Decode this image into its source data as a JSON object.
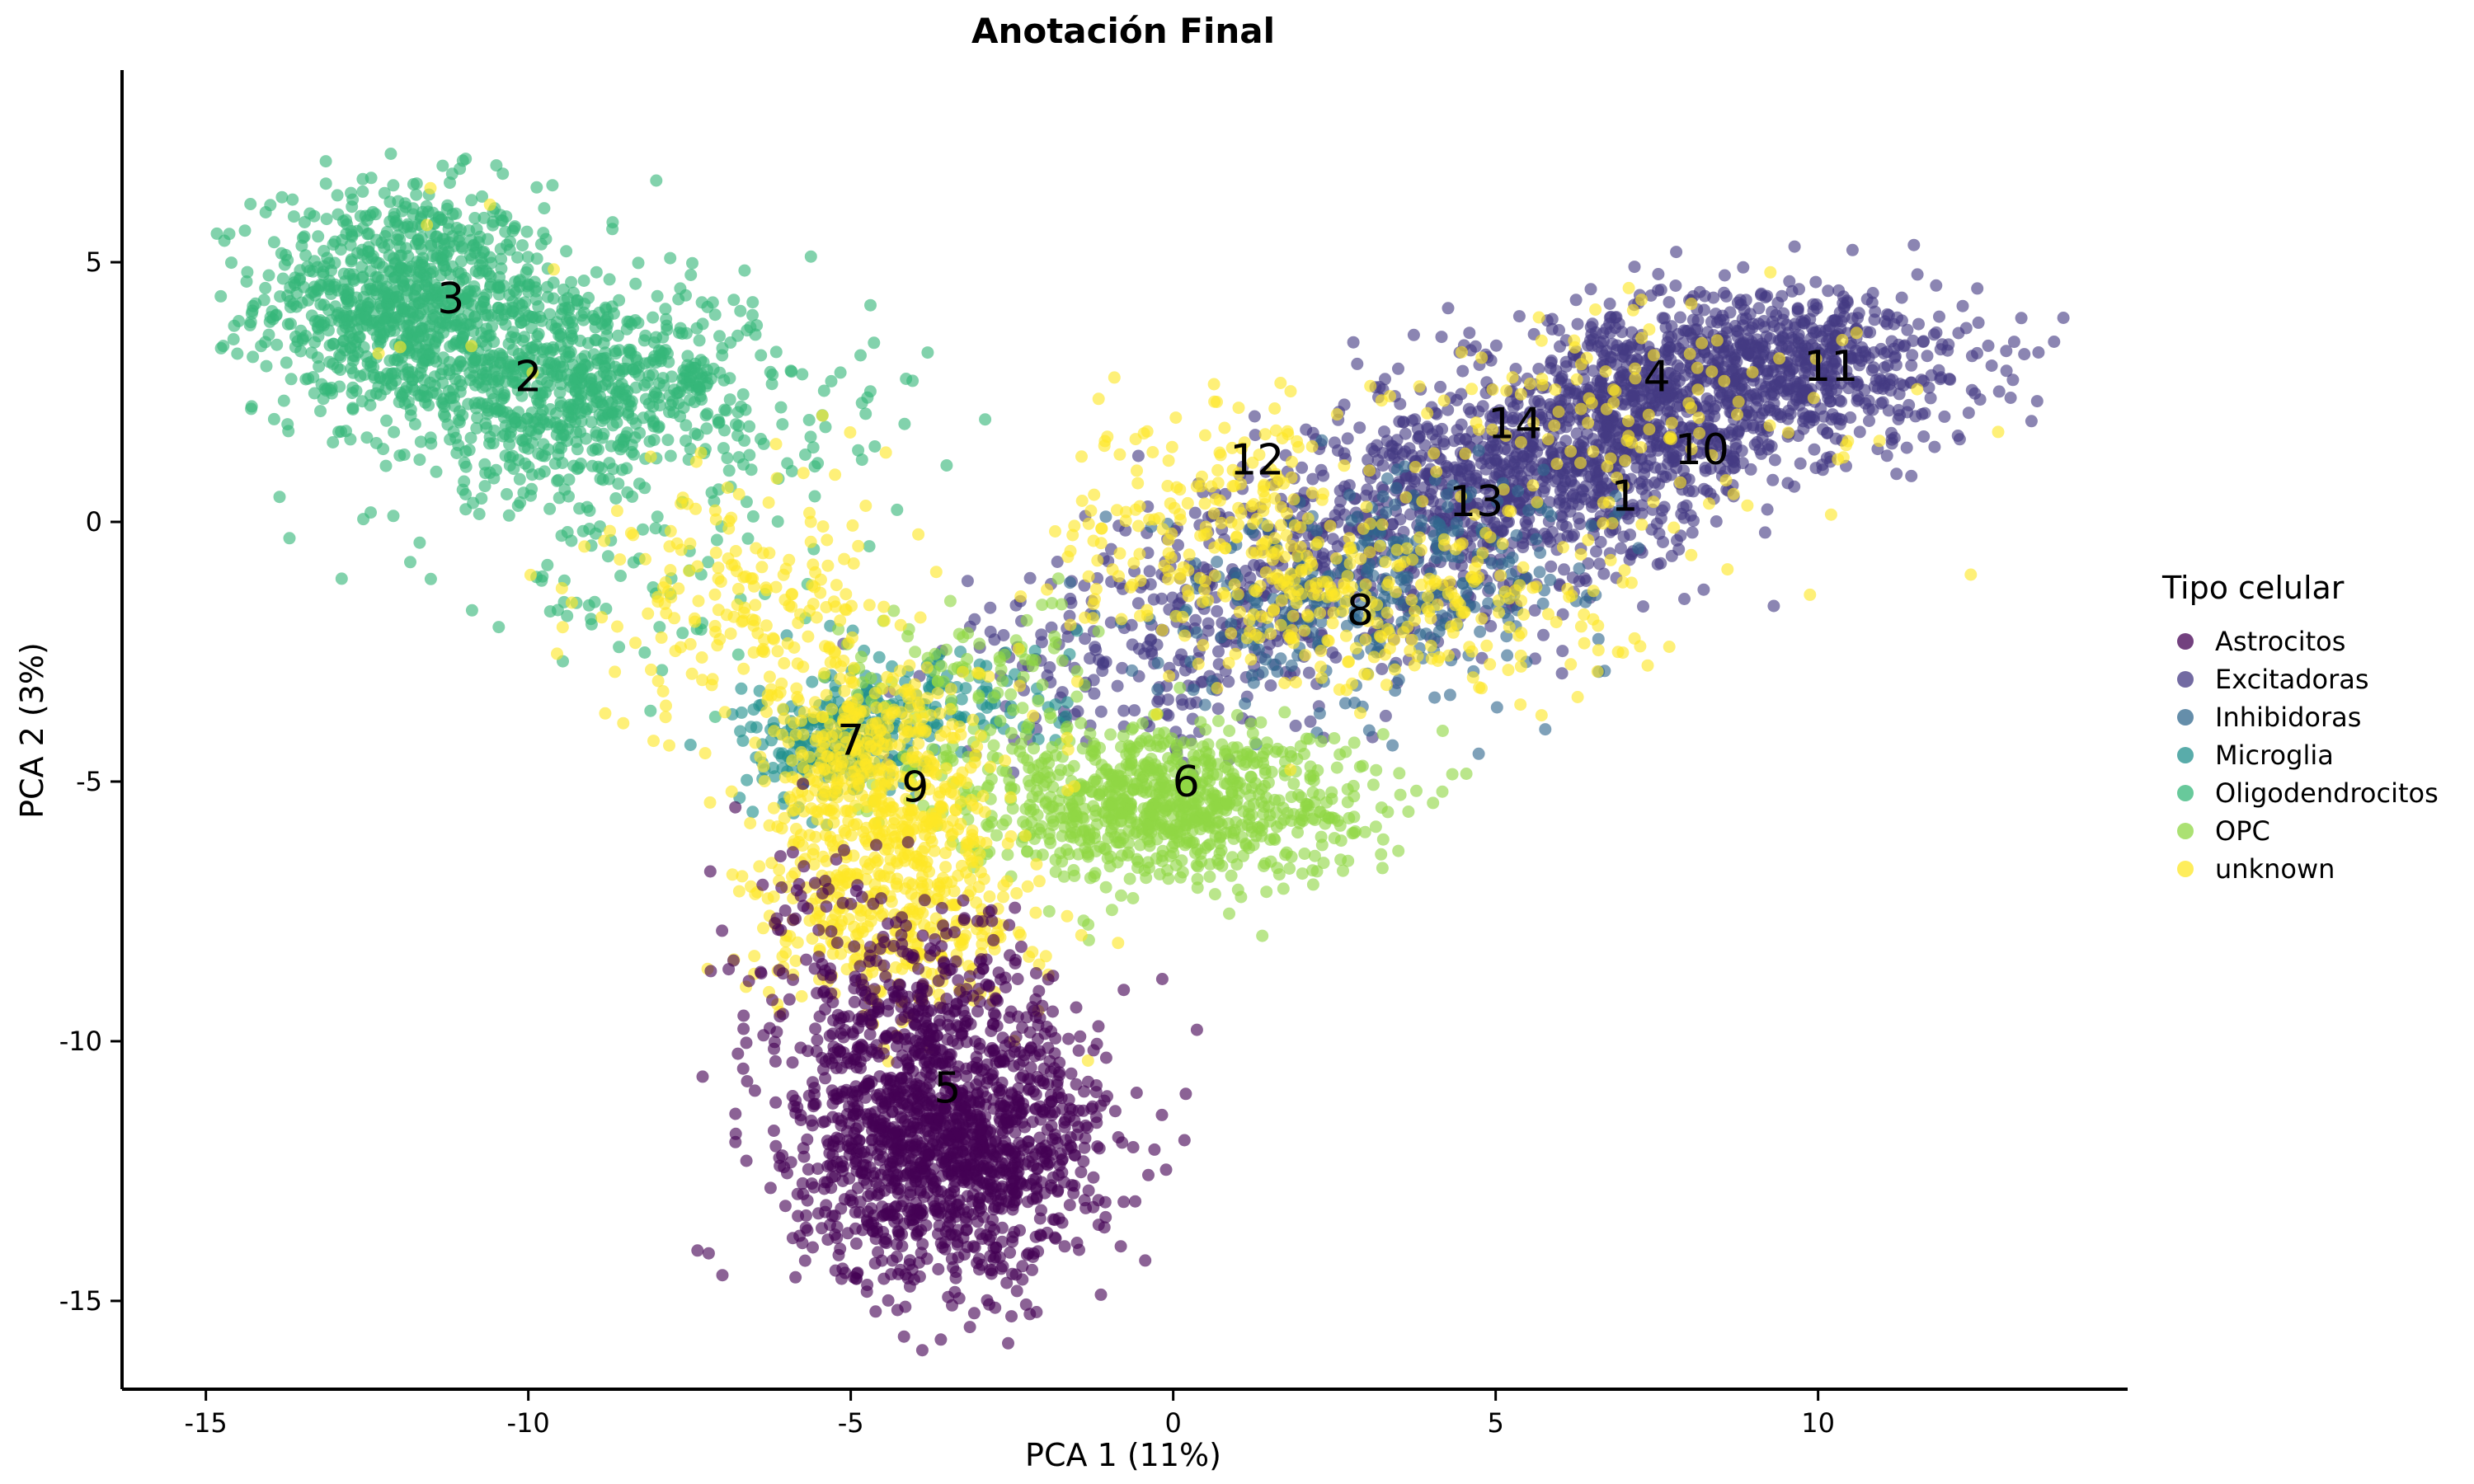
{
  "chart_data": {
    "type": "scatter",
    "title": "Anotación Final",
    "xlabel": "PCA 1 (11%)",
    "ylabel": "PCA 2 (3%)",
    "xlim": [
      -16.3,
      14.8
    ],
    "ylim": [
      -16.7,
      8.7
    ],
    "x_ticks": [
      -15,
      -10,
      -5,
      0,
      5,
      10
    ],
    "x_tick_labels": [
      "-15",
      "-10",
      "-5",
      "0",
      "5",
      "10"
    ],
    "y_ticks": [
      5,
      0,
      -5,
      -10,
      -15
    ],
    "y_tick_labels": [
      "5",
      "0",
      "-5",
      "-10",
      "-15"
    ],
    "grid": false,
    "legend": {
      "title": "Tipo celular",
      "placement": "right",
      "entries": [
        {
          "label": "Astrocitos",
          "color": "#440154"
        },
        {
          "label": "Excitadoras",
          "color": "#443a83"
        },
        {
          "label": "Inhibidoras",
          "color": "#31688e"
        },
        {
          "label": "Microglia",
          "color": "#21908d"
        },
        {
          "label": "Oligodendrocitos",
          "color": "#35b779"
        },
        {
          "label": "OPC",
          "color": "#8fd744"
        },
        {
          "label": "unknown",
          "color": "#fde725"
        }
      ]
    },
    "cluster_labels": [
      {
        "text": "1",
        "x": 7.0,
        "y": 0.5
      },
      {
        "text": "2",
        "x": -10.0,
        "y": 2.8
      },
      {
        "text": "3",
        "x": -11.2,
        "y": 4.3
      },
      {
        "text": "4",
        "x": 7.5,
        "y": 2.8
      },
      {
        "text": "5",
        "x": -3.5,
        "y": -10.9
      },
      {
        "text": "6",
        "x": 0.2,
        "y": -5.0
      },
      {
        "text": "7",
        "x": -5.0,
        "y": -4.2
      },
      {
        "text": "8",
        "x": 2.9,
        "y": -1.7
      },
      {
        "text": "9",
        "x": -4.0,
        "y": -5.1
      },
      {
        "text": "10",
        "x": 8.2,
        "y": 1.4
      },
      {
        "text": "11",
        "x": 10.2,
        "y": 3.0
      },
      {
        "text": "12",
        "x": 1.3,
        "y": 1.2
      },
      {
        "text": "13",
        "x": 4.7,
        "y": 0.4
      },
      {
        "text": "14",
        "x": 5.3,
        "y": 1.9
      }
    ],
    "series": [
      {
        "name": "Oligodendrocitos",
        "color": "#35b779",
        "regions": [
          {
            "cx": -12.0,
            "cy": 4.3,
            "sx": 1.1,
            "sy": 1.1,
            "n": 800
          },
          {
            "cx": -10.0,
            "cy": 2.8,
            "sx": 1.2,
            "sy": 1.1,
            "n": 600
          },
          {
            "cx": -8.0,
            "cy": 2.6,
            "sx": 0.9,
            "sy": 0.9,
            "n": 220
          },
          {
            "cx": -6.5,
            "cy": 2.0,
            "sx": 1.4,
            "sy": 1.3,
            "n": 90
          },
          {
            "cx": -9.0,
            "cy": -0.8,
            "sx": 1.3,
            "sy": 1.2,
            "n": 70
          }
        ]
      },
      {
        "name": "Excitadoras",
        "color": "#443a83",
        "regions": [
          {
            "cx": 9.5,
            "cy": 3.0,
            "sx": 1.5,
            "sy": 0.8,
            "n": 700
          },
          {
            "cx": 7.0,
            "cy": 1.8,
            "sx": 1.4,
            "sy": 1.0,
            "n": 700
          },
          {
            "cx": 4.8,
            "cy": 0.6,
            "sx": 1.2,
            "sy": 1.0,
            "n": 500
          },
          {
            "cx": 2.2,
            "cy": -1.0,
            "sx": 1.5,
            "sy": 1.1,
            "n": 320
          },
          {
            "cx": -0.5,
            "cy": -2.6,
            "sx": 1.5,
            "sy": 1.0,
            "n": 200
          }
        ]
      },
      {
        "name": "Inhibidoras",
        "color": "#31688e",
        "regions": [
          {
            "cx": 2.5,
            "cy": -1.5,
            "sx": 1.4,
            "sy": 1.0,
            "n": 220
          },
          {
            "cx": 4.5,
            "cy": -0.7,
            "sx": 1.1,
            "sy": 0.8,
            "n": 120
          }
        ]
      },
      {
        "name": "Microglia",
        "color": "#21908d",
        "regions": [
          {
            "cx": -5.3,
            "cy": -4.3,
            "sx": 0.7,
            "sy": 0.55,
            "n": 220
          },
          {
            "cx": -3.5,
            "cy": -3.4,
            "sx": 1.0,
            "sy": 0.6,
            "n": 110
          }
        ]
      },
      {
        "name": "OPC",
        "color": "#8fd744",
        "regions": [
          {
            "cx": -0.2,
            "cy": -5.4,
            "sx": 1.6,
            "sy": 0.75,
            "n": 900
          },
          {
            "cx": -3.2,
            "cy": -3.0,
            "sx": 1.0,
            "sy": 0.8,
            "n": 90
          }
        ]
      },
      {
        "name": "unknown",
        "color": "#fde725",
        "regions": [
          {
            "cx": -4.5,
            "cy": -5.0,
            "sx": 0.9,
            "sy": 1.2,
            "n": 500
          },
          {
            "cx": -4.3,
            "cy": -7.8,
            "sx": 1.1,
            "sy": 0.9,
            "n": 350
          },
          {
            "cx": 0.8,
            "cy": 0.0,
            "sx": 1.2,
            "sy": 1.2,
            "n": 220
          },
          {
            "cx": 3.5,
            "cy": -1.5,
            "sx": 1.8,
            "sy": 1.0,
            "n": 250
          },
          {
            "cx": -6.5,
            "cy": -1.5,
            "sx": 1.3,
            "sy": 1.3,
            "n": 200
          },
          {
            "cx": 7.5,
            "cy": 2.0,
            "sx": 2.0,
            "sy": 1.2,
            "n": 120
          },
          {
            "cx": -11.0,
            "cy": 4.5,
            "sx": 1.0,
            "sy": 1.0,
            "n": 8
          }
        ]
      },
      {
        "name": "Astrocitos",
        "color": "#440154",
        "regions": [
          {
            "cx": -3.5,
            "cy": -12.0,
            "sx": 1.2,
            "sy": 1.3,
            "n": 1400
          },
          {
            "cx": -4.2,
            "cy": -9.2,
            "sx": 1.2,
            "sy": 0.9,
            "n": 250
          },
          {
            "cx": -5.5,
            "cy": -6.8,
            "sx": 0.6,
            "sy": 0.8,
            "n": 30
          }
        ]
      }
    ]
  }
}
